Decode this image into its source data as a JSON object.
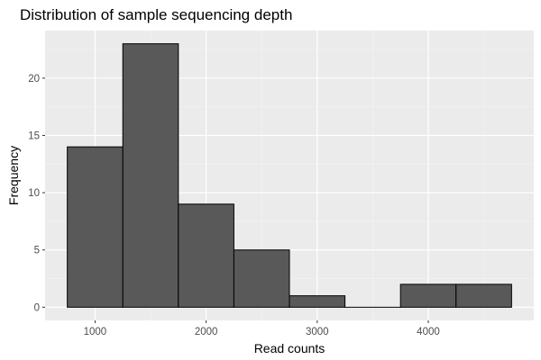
{
  "chart_data": {
    "type": "bar",
    "subtype": "histogram",
    "title": "Distribution of sample sequencing depth",
    "xlabel": "Read counts",
    "ylabel": "Frequency",
    "bins": [
      {
        "start": 750,
        "end": 1250,
        "count": 14
      },
      {
        "start": 1250,
        "end": 1750,
        "count": 23
      },
      {
        "start": 1750,
        "end": 2250,
        "count": 9
      },
      {
        "start": 2250,
        "end": 2750,
        "count": 5
      },
      {
        "start": 2750,
        "end": 3250,
        "count": 1
      },
      {
        "start": 3250,
        "end": 3750,
        "count": 0
      },
      {
        "start": 3750,
        "end": 4250,
        "count": 2
      },
      {
        "start": 4250,
        "end": 4750,
        "count": 2
      }
    ],
    "xlim": [
      550,
      4950
    ],
    "ylim": [
      -1.15,
      24.15
    ],
    "xticks": [
      1000,
      2000,
      3000,
      4000
    ],
    "yticks": [
      0,
      5,
      10,
      15,
      20
    ],
    "grid": true,
    "legend": "none",
    "colors": {
      "panel_background": "#EBEBEB",
      "grid_major": "#FFFFFF",
      "grid_minor": "#F5F5F5",
      "bar_fill": "#595959",
      "bar_outline": "#000000",
      "tick_text": "#4D4D4D"
    }
  }
}
